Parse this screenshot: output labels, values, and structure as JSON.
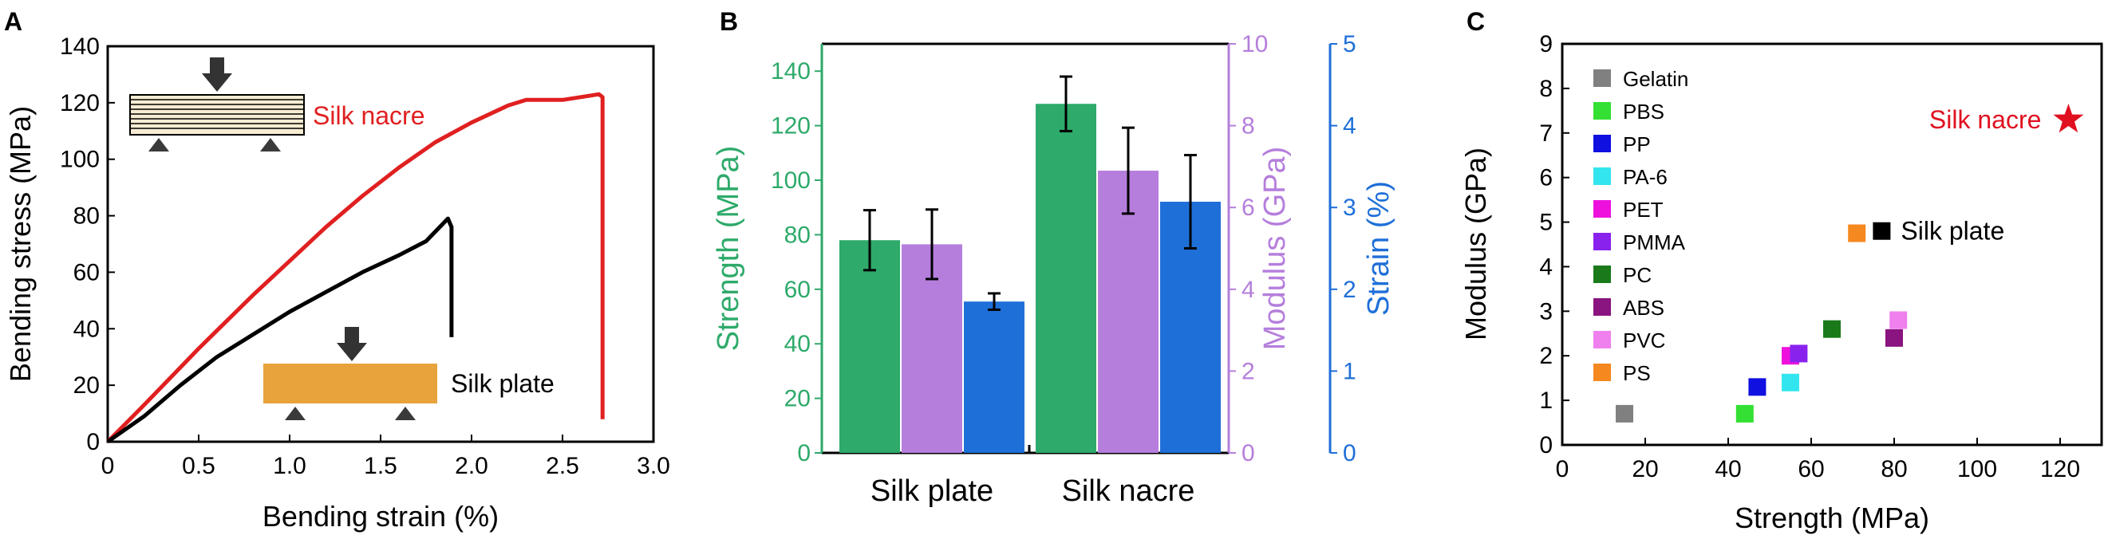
{
  "chart_data": [
    {
      "type": "line",
      "panel_label": "A",
      "xlabel": "Bending strain (%)",
      "ylabel": "Bending stress (MPa)",
      "xlim": [
        0,
        3.0
      ],
      "ylim": [
        0,
        140
      ],
      "xticks": [
        "0",
        "0.5",
        "1.0",
        "1.5",
        "2.0",
        "2.5",
        "3.0"
      ],
      "yticks": [
        "0",
        "20",
        "40",
        "60",
        "80",
        "100",
        "120",
        "140"
      ],
      "series": [
        {
          "name": "Silk nacre",
          "color": "#e02020",
          "points": [
            [
              0,
              0
            ],
            [
              0.2,
              13
            ],
            [
              0.5,
              33
            ],
            [
              0.8,
              52
            ],
            [
              1.0,
              64
            ],
            [
              1.2,
              76
            ],
            [
              1.4,
              87
            ],
            [
              1.6,
              97
            ],
            [
              1.8,
              106
            ],
            [
              2.0,
              113
            ],
            [
              2.2,
              119
            ],
            [
              2.3,
              121
            ],
            [
              2.5,
              121
            ],
            [
              2.6,
              122
            ],
            [
              2.7,
              123
            ],
            [
              2.72,
              122
            ],
            [
              2.72,
              8
            ]
          ]
        },
        {
          "name": "Silk plate",
          "color": "#000000",
          "points": [
            [
              0,
              0
            ],
            [
              0.2,
              9
            ],
            [
              0.4,
              20
            ],
            [
              0.6,
              30
            ],
            [
              0.8,
              38
            ],
            [
              1.0,
              46
            ],
            [
              1.2,
              53
            ],
            [
              1.4,
              60
            ],
            [
              1.6,
              66
            ],
            [
              1.75,
              71
            ],
            [
              1.87,
              79
            ],
            [
              1.89,
              76
            ],
            [
              1.89,
              37
            ]
          ]
        }
      ]
    },
    {
      "type": "bar",
      "panel_label": "B",
      "categories": [
        "Silk plate",
        "Silk nacre"
      ],
      "series": [
        {
          "name": "Strength",
          "axis": "Strength (MPa)",
          "color": "#2eaa6a",
          "values": [
            78,
            128
          ],
          "errors": [
            11,
            10
          ]
        },
        {
          "name": "Modulus",
          "axis": "Modulus (GPa)",
          "color": "#b57edc",
          "values": [
            5.1,
            6.9
          ],
          "errors": [
            0.85,
            1.05
          ]
        },
        {
          "name": "Strain",
          "axis": "Strain (%)",
          "color": "#1f6fd8",
          "values": [
            1.85,
            3.07
          ],
          "errors": [
            0.1,
            0.57
          ]
        }
      ],
      "axes": {
        "strength": {
          "label": "Strength (MPa)",
          "ylim": [
            0,
            150
          ],
          "ticks": [
            "0",
            "20",
            "40",
            "60",
            "80",
            "100",
            "120",
            "140"
          ]
        },
        "modulus": {
          "label": "Modulus (GPa)",
          "ylim": [
            0,
            10
          ],
          "ticks": [
            "0",
            "2",
            "4",
            "6",
            "8",
            "10"
          ]
        },
        "strain": {
          "label": "Strain (%)",
          "ylim": [
            0,
            5
          ],
          "ticks": [
            "0",
            "1",
            "2",
            "3",
            "4",
            "5"
          ]
        }
      }
    },
    {
      "type": "scatter",
      "panel_label": "C",
      "xlabel": "Strength (MPa)",
      "ylabel": "Modulus (GPa)",
      "xlim": [
        0,
        130
      ],
      "ylim": [
        0,
        9
      ],
      "xticks": [
        "0",
        "20",
        "40",
        "60",
        "80",
        "100",
        "120"
      ],
      "yticks": [
        "0",
        "1",
        "2",
        "3",
        "4",
        "5",
        "6",
        "7",
        "8",
        "9"
      ],
      "points": [
        {
          "name": "Gelatin",
          "x": 15,
          "y": 0.7,
          "color": "#808080"
        },
        {
          "name": "PBS",
          "x": 44,
          "y": 0.7,
          "color": "#33e033"
        },
        {
          "name": "PP",
          "x": 47,
          "y": 1.3,
          "color": "#1010e0"
        },
        {
          "name": "PA-6",
          "x": 55,
          "y": 1.4,
          "color": "#33e5ee"
        },
        {
          "name": "PET",
          "x": 55,
          "y": 2.0,
          "color": "#ee11dd"
        },
        {
          "name": "PMMA",
          "x": 57,
          "y": 2.05,
          "color": "#8a22ee"
        },
        {
          "name": "PC",
          "x": 65,
          "y": 2.6,
          "color": "#1a7a1a"
        },
        {
          "name": "ABS",
          "x": 80,
          "y": 2.4,
          "color": "#8a1480"
        },
        {
          "name": "PVC",
          "x": 81,
          "y": 2.8,
          "color": "#f080ee"
        },
        {
          "name": "PS",
          "x": 71,
          "y": 4.75,
          "color": "#f5881f"
        },
        {
          "name": "Silk plate",
          "x": 77,
          "y": 4.8,
          "color": "#000000",
          "label": "Silk plate"
        },
        {
          "name": "Silk nacre",
          "x": 122,
          "y": 7.3,
          "color": "#e01020",
          "shape": "star",
          "label": "Silk nacre"
        }
      ],
      "legend": [
        "Gelatin",
        "PBS",
        "PP",
        "PA-6",
        "PET",
        "PMMA",
        "PC",
        "ABS",
        "PVC",
        "PS"
      ]
    }
  ]
}
